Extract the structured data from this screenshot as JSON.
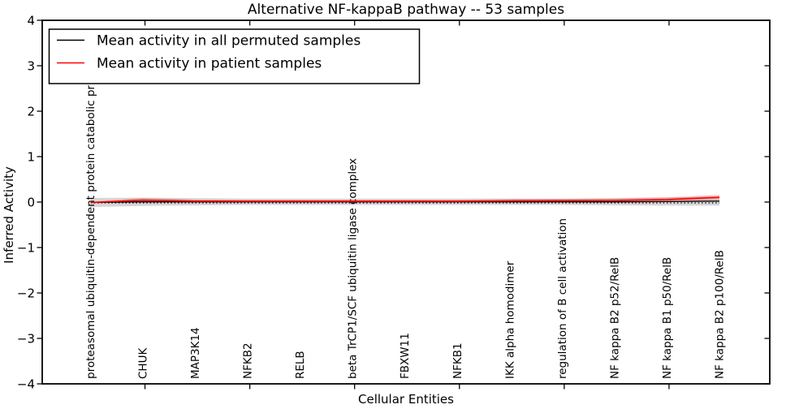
{
  "figure": {
    "title": "Alternative NF-kappaB pathway -- 53 samples",
    "xlabel": "Cellular Entities",
    "ylabel": "Inferred Activity"
  },
  "legend": {
    "items": [
      {
        "label": "Mean activity in all permuted samples",
        "color": "#000000"
      },
      {
        "label": "Mean activity in patient samples",
        "color": "#ff0000"
      }
    ]
  },
  "chart_data": {
    "type": "line",
    "title": "Alternative NF-kappaB pathway -- 53 samples",
    "xlabel": "Cellular Entities",
    "ylabel": "Inferred Activity",
    "ylim": [
      -4,
      4
    ],
    "ytick_labels": [
      "4",
      "3",
      "2",
      "1",
      "0",
      "−1",
      "−2",
      "−3",
      "−4"
    ],
    "grid": false,
    "legend_position": "upper left",
    "zero_reference_line": {
      "y": 0,
      "style": "dotted",
      "color": "#000000"
    },
    "categories": [
      "proteasomal ubiquitin-dependent protein catabolic pr",
      "CHUK",
      "MAP3K14",
      "NFKB2",
      "RELB",
      "beta TrCP1/SCF ubiquitin ligase complex",
      "FBXW11",
      "NFKB1",
      "IKK alpha homodimer",
      "regulation of B cell activation",
      "NF kappa B2 p52/RelB",
      "NF kappa B1 p50/RelB",
      "NF kappa B2 p100/RelB"
    ],
    "series": [
      {
        "name": "Mean activity in all permuted samples",
        "color": "#000000",
        "band_color": "rgba(0,0,0,0.16)",
        "values": [
          0.0,
          0.015,
          0.015,
          0.015,
          0.015,
          0.015,
          0.015,
          0.015,
          0.015,
          0.015,
          0.015,
          0.02,
          0.03
        ],
        "band": [
          0.1,
          0.09,
          0.08,
          0.07,
          0.07,
          0.07,
          0.07,
          0.07,
          0.07,
          0.07,
          0.08,
          0.09,
          0.1
        ]
      },
      {
        "name": "Mean activity in patient samples",
        "color": "#ff0000",
        "band_color": "rgba(255,0,0,0.22)",
        "values": [
          0.0,
          0.05,
          0.03,
          0.028,
          0.028,
          0.028,
          0.028,
          0.028,
          0.035,
          0.04,
          0.045,
          0.065,
          0.115
        ],
        "band": [
          0.012,
          0.05,
          0.035,
          0.03,
          0.03,
          0.03,
          0.03,
          0.03,
          0.04,
          0.04,
          0.045,
          0.05,
          0.055
        ]
      }
    ]
  }
}
